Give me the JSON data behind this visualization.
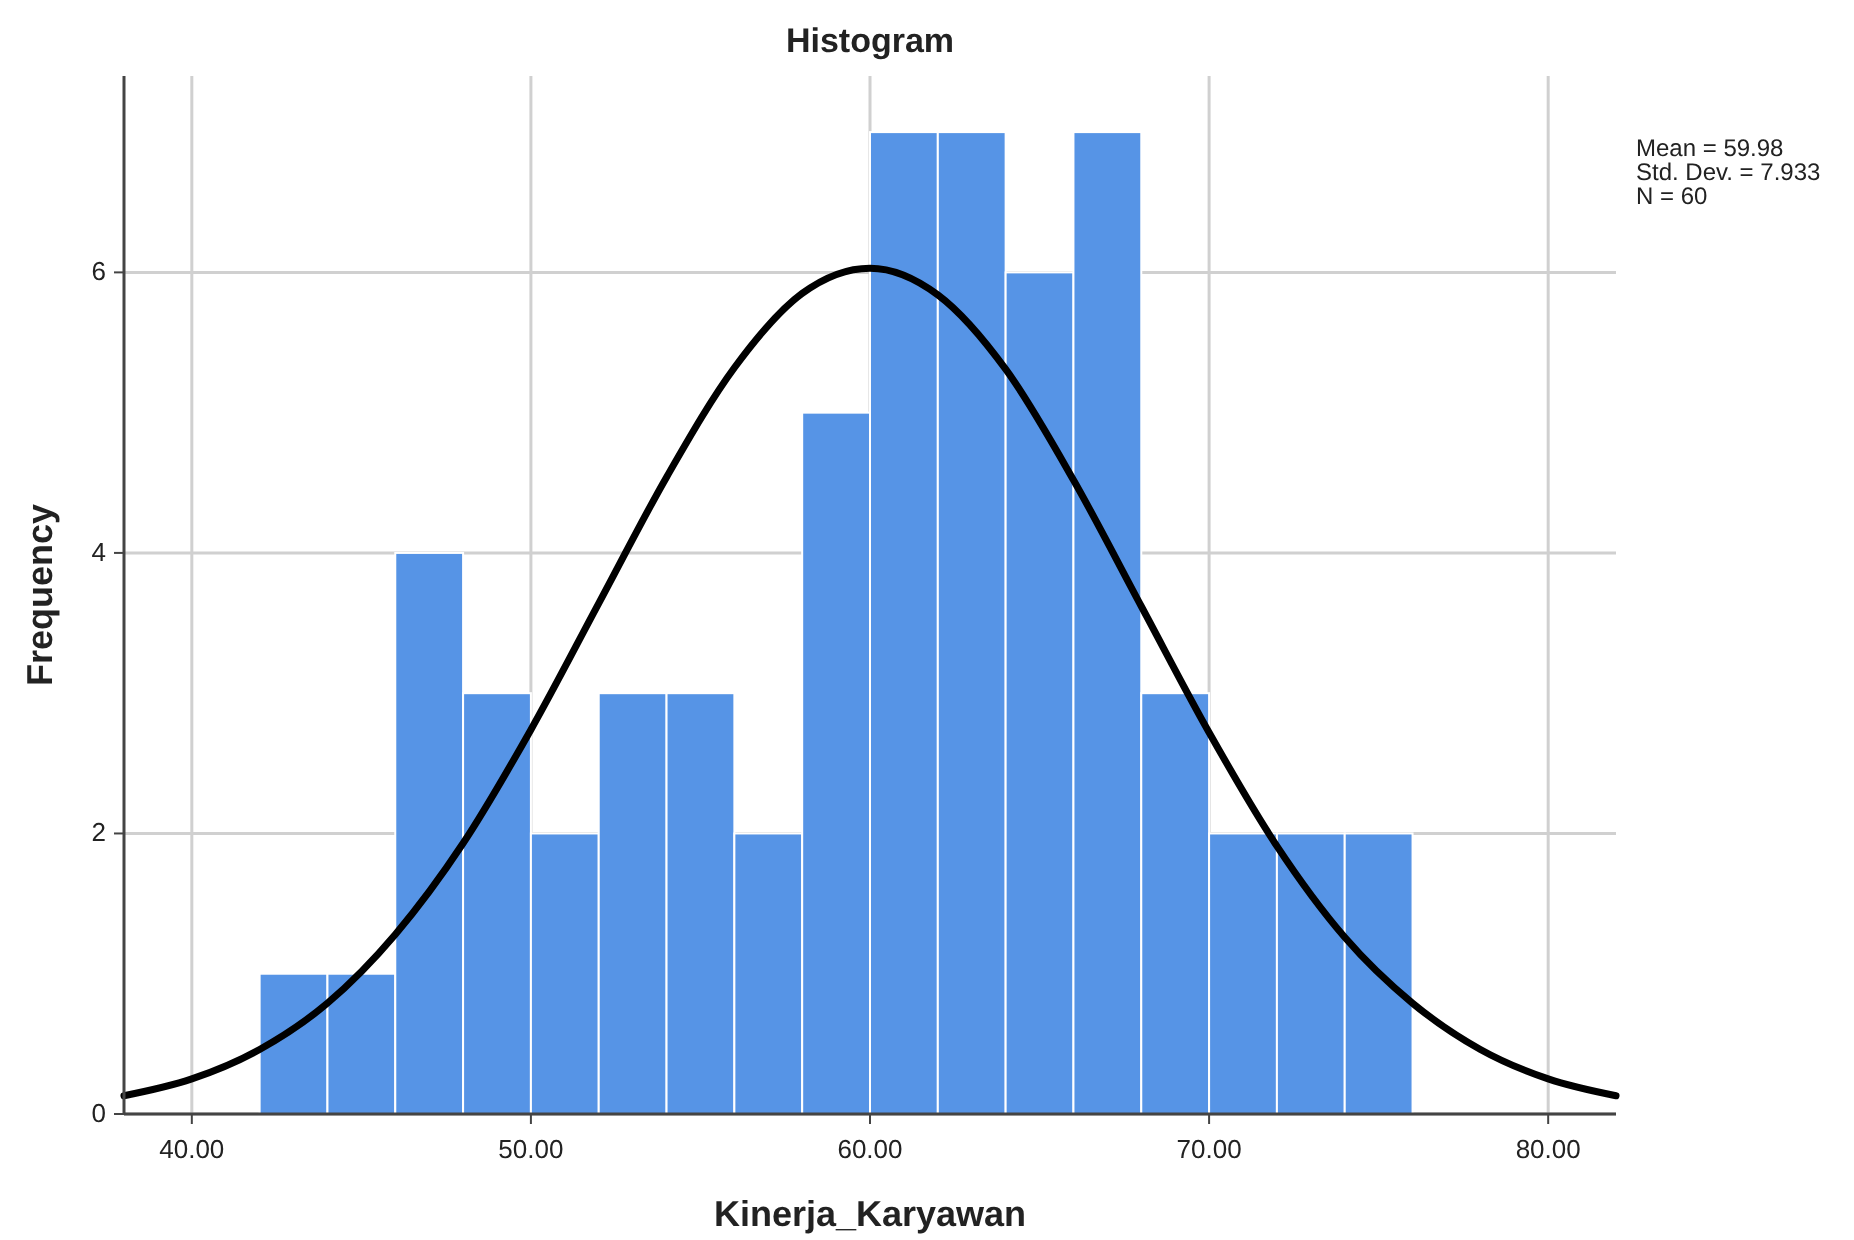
{
  "chart_data": {
    "type": "histogram",
    "title": "Histogram",
    "xlabel": "Kinerja_Karyawan",
    "ylabel": "Frequency",
    "xlim": [
      38,
      82
    ],
    "ylim": [
      0,
      7.4
    ],
    "xticks": [
      {
        "value": 40,
        "label": "40.00"
      },
      {
        "value": 50,
        "label": "50.00"
      },
      {
        "value": 60,
        "label": "60.00"
      },
      {
        "value": 70,
        "label": "70.00"
      },
      {
        "value": 80,
        "label": "80.00"
      }
    ],
    "yticks": [
      0,
      2,
      4,
      6
    ],
    "grid": true,
    "annotations": [
      "Mean = 59.98",
      "Std. Dev. = 7.933",
      "N = 60"
    ],
    "series": [
      {
        "color": "#5694e6",
        "bins": [
          42,
          44,
          46,
          48,
          50,
          52,
          54,
          56,
          58,
          60,
          62,
          64,
          66,
          68,
          70,
          72,
          74,
          76
        ],
        "values": [
          1,
          1,
          4,
          3,
          2,
          3,
          3,
          2,
          5,
          7,
          7,
          6,
          7,
          3,
          2,
          2,
          2
        ]
      },
      {
        "type": "line",
        "color": "#000000",
        "x": [
          38,
          40,
          42,
          44,
          46,
          48,
          50,
          52,
          54,
          56,
          58,
          60,
          62,
          64,
          66,
          68,
          70,
          72,
          74,
          76,
          78,
          80,
          82
        ],
        "values": [
          0.13,
          0.25,
          0.46,
          0.79,
          1.28,
          1.93,
          2.74,
          3.64,
          4.54,
          5.32,
          5.85,
          6.03,
          5.84,
          5.31,
          4.52,
          3.62,
          2.72,
          1.91,
          1.26,
          0.79,
          0.46,
          0.25,
          0.13
        ]
      }
    ]
  }
}
